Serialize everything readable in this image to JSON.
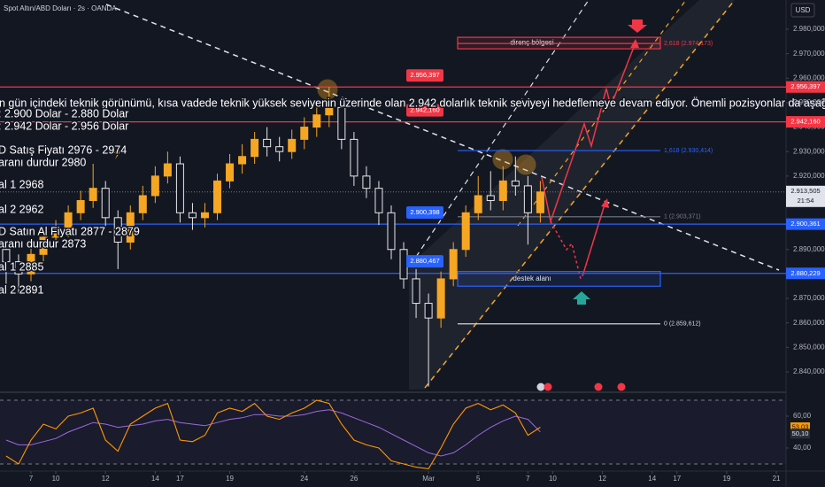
{
  "chart_data": {
    "type": "candlestick",
    "title": "Spot Altın/ABD Doları · 2s · OANDA",
    "currency": "USD",
    "x": [
      -1,
      -0.5,
      0,
      0.5,
      1,
      1.5,
      2,
      2.5,
      3,
      3.5,
      4,
      4.5,
      5,
      5.5,
      6,
      6.5,
      7,
      7.5,
      8,
      8.5,
      9,
      9.5,
      10,
      10.5,
      11,
      11.5,
      12,
      12.5,
      13,
      13.5,
      14,
      14.5,
      15,
      15.5,
      16,
      16.5,
      17,
      17.5,
      18,
      18.5,
      19,
      19.5,
      20,
      20.5
    ],
    "open": [
      2890,
      2885,
      2880,
      2888,
      2895,
      2898,
      2905,
      2910,
      2915,
      2903,
      2893,
      2905,
      2912,
      2920,
      2925,
      2905,
      2903,
      2905,
      2918,
      2925,
      2928,
      2935,
      2932,
      2930,
      2935,
      2940,
      2945,
      2948,
      2935,
      2920,
      2915,
      2905,
      2890,
      2878,
      2868,
      2862,
      2878,
      2890,
      2905,
      2912,
      2910,
      2918,
      2916,
      2905
    ],
    "high": [
      2893,
      2888,
      2891,
      2899,
      2902,
      2908,
      2914,
      2925,
      2918,
      2906,
      2908,
      2916,
      2924,
      2930,
      2928,
      2909,
      2909,
      2921,
      2929,
      2933,
      2938,
      2940,
      2936,
      2939,
      2944,
      2950,
      2956.4,
      2951,
      2938,
      2924,
      2918,
      2908,
      2893,
      2882,
      2872,
      2881,
      2893,
      2908,
      2920,
      2922,
      2924,
      2928,
      2920,
      2918
    ],
    "low": [
      2876,
      2872,
      2877,
      2885,
      2892,
      2895,
      2902,
      2907,
      2899,
      2882,
      2890,
      2902,
      2909,
      2917,
      2901,
      2898,
      2899,
      2902,
      2915,
      2921,
      2925,
      2928,
      2926,
      2927,
      2931,
      2936,
      2940,
      2931,
      2916,
      2911,
      2900,
      2886,
      2874,
      2862,
      2834,
      2858,
      2875,
      2887,
      2902,
      2906,
      2906,
      2912,
      2892,
      2901
    ],
    "close": [
      2885,
      2880,
      2888,
      2895,
      2898,
      2905,
      2910,
      2915,
      2903,
      2893,
      2905,
      2912,
      2920,
      2925,
      2905,
      2903,
      2905,
      2918,
      2925,
      2928,
      2935,
      2932,
      2930,
      2935,
      2940,
      2945,
      2948,
      2935,
      2920,
      2915,
      2905,
      2890,
      2878,
      2868,
      2862,
      2878,
      2890,
      2905,
      2912,
      2910,
      2918,
      2916,
      2905,
      2913.505
    ],
    "up_color": "#f5a623",
    "down_color": "#e8e8e8",
    "xlim": [
      -1.247,
      30.39
    ],
    "xticks": [
      {
        "value": 0,
        "label": "7"
      },
      {
        "value": 1,
        "label": "10"
      },
      {
        "value": 3,
        "label": "12"
      },
      {
        "value": 5,
        "label": "14"
      },
      {
        "value": 6,
        "label": "17"
      },
      {
        "value": 8,
        "label": "19"
      },
      {
        "value": 11,
        "label": "24"
      },
      {
        "value": 13,
        "label": "26"
      },
      {
        "value": 16,
        "label": "Mar"
      },
      {
        "value": 18,
        "label": "5"
      },
      {
        "value": 20,
        "label": "7"
      },
      {
        "value": 21,
        "label": "10"
      },
      {
        "value": 23,
        "label": "12"
      },
      {
        "value": 25,
        "label": "14"
      },
      {
        "value": 26,
        "label": "17"
      },
      {
        "value": 28,
        "label": "19"
      },
      {
        "value": 30,
        "label": "21"
      }
    ],
    "ylim": [
      2832.75,
      2991.94
    ],
    "yticks": [
      {
        "value": 2980,
        "label": "2.980,000"
      },
      {
        "value": 2970,
        "label": "2.970,000"
      },
      {
        "value": 2960,
        "label": "2.960,000"
      },
      {
        "value": 2950,
        "label": "2.950,000"
      },
      {
        "value": 2940,
        "label": "2.940,000"
      },
      {
        "value": 2930,
        "label": "2.930,000"
      },
      {
        "value": 2920,
        "label": "2.920,000"
      },
      {
        "value": 2910,
        "label": "2.910,000"
      },
      {
        "value": 2900,
        "label": "2.900,000"
      },
      {
        "value": 2890,
        "label": "2.890,000"
      },
      {
        "value": 2880,
        "label": "2.880,000"
      },
      {
        "value": 2870,
        "label": "2.870,000"
      },
      {
        "value": 2860,
        "label": "2.860,000"
      },
      {
        "value": 2850,
        "label": "2.850,000"
      },
      {
        "value": 2840,
        "label": "2.840,000"
      }
    ],
    "last_price": {
      "value": 2913.505,
      "label": "2.913,505",
      "time": "21:54"
    },
    "levels": [
      {
        "value": 2956.397,
        "label": "2.956,397",
        "color": "#f23645"
      },
      {
        "value": 2942.16,
        "label": "2.942,160",
        "color": "#f23645"
      },
      {
        "value": 2900.361,
        "label": "2.900,361",
        "color": "#2962ff"
      },
      {
        "value": 2880.229,
        "label": "2.880,229",
        "color": "#2962ff"
      }
    ],
    "markers": [
      {
        "value": 2956.397,
        "label": "2.956,397",
        "color": "#f23645"
      },
      {
        "value": 2942.16,
        "label": "2.942,160",
        "color": "#f23645"
      },
      {
        "value": 2900.398,
        "label": "2.900,398",
        "color": "#2962ff"
      },
      {
        "value": 2880.467,
        "label": "2.880,467",
        "color": "#2962ff"
      }
    ],
    "fib": [
      {
        "value": 2974.173,
        "label": "2,618 (2.974,173)",
        "color": "#f23645"
      },
      {
        "value": 2930.414,
        "label": "1,618 (2.930,414)",
        "color": "#2962ff"
      },
      {
        "value": 2903.371,
        "label": "1 (2.903,371)",
        "color": "#787b86"
      },
      {
        "value": 2859.612,
        "label": "0 (2.859,612)",
        "color": "#d1d4dc"
      }
    ],
    "zones": [
      {
        "label": "direnç bölgesi",
        "top": 2976.7,
        "bottom": 2972,
        "color": "#f23645"
      },
      {
        "label": "destek alanı",
        "top": 2881,
        "bottom": 2875,
        "color": "#2962ff"
      }
    ],
    "notes": [
      "n gün içindeki teknik görünümü, kısa vadede teknik yüksek seviyenin üzerinde olan 2.942 dolarlık teknik seviyeyi hedeflemeye devam ediyor. Önemli pozisyonlar da aşağıda listelenec",
      ": 2.900 Dolar - 2.880 Dolar",
      ": 2.942 Dolar - 2.956 Dolar",
      "D Satış Fiyatı 2976 - 2974",
      "aranı durdur 2980",
      "al 1 2968",
      "al 2 2962",
      "D Satın Al Fiyatı 2877 - 2879",
      "aranı durdur 2873",
      "al 1 2885",
      "al 2 2891"
    ],
    "rsi": {
      "values": [
        35,
        30,
        45,
        55,
        52,
        60,
        62,
        65,
        45,
        38,
        55,
        60,
        65,
        68,
        45,
        44,
        48,
        62,
        65,
        63,
        68,
        60,
        58,
        62,
        65,
        70,
        68,
        55,
        45,
        42,
        40,
        32,
        30,
        28,
        27,
        40,
        55,
        65,
        68,
        64,
        67,
        62,
        48,
        53.03
      ],
      "value_label": "53,03",
      "color": "#ff9800",
      "ma": [
        45,
        42,
        42,
        44,
        46,
        50,
        53,
        56,
        55,
        53,
        54,
        55,
        57,
        58,
        56,
        55,
        54,
        56,
        58,
        59,
        61,
        61,
        60,
        60,
        61,
        63,
        64,
        62,
        59,
        56,
        53,
        49,
        45,
        41,
        37,
        35,
        37,
        42,
        48,
        53,
        57,
        60,
        58,
        50.1
      ],
      "ma_label": "50,10",
      "ma_color": "#9c6ade",
      "ylim": [
        27.2,
        72.2
      ],
      "yticks": [
        {
          "value": 60,
          "label": "60,00"
        },
        {
          "value": 40,
          "label": "40,00"
        }
      ],
      "bands": [
        70,
        30
      ]
    }
  }
}
